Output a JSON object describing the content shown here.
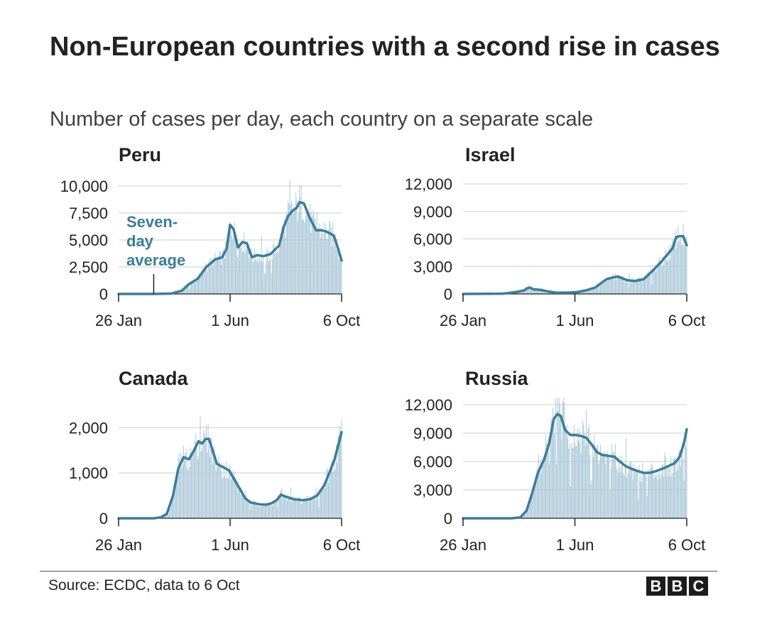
{
  "title": "Non-European countries with a second rise in cases",
  "subtitle": "Number of cases per day, each country on a separate scale",
  "source": "Source: ECDC, data to 6 Oct",
  "logo": [
    "B",
    "B",
    "C"
  ],
  "colors": {
    "line": "#3b7d99",
    "bars": "#a9c8d8",
    "grid": "#cccccc",
    "axis": "#222222",
    "text": "#222222"
  },
  "chart_data": [
    {
      "type": "bar",
      "title": "Peru",
      "x_domain_days": [
        0,
        254
      ],
      "x_ticks": [
        {
          "day": 0,
          "label": "26 Jan"
        },
        {
          "day": 127,
          "label": "1 Jun"
        },
        {
          "day": 254,
          "label": "6 Oct"
        }
      ],
      "y_ticks": [
        "0",
        "2,500",
        "5,000",
        "7,500",
        "10,000"
      ],
      "ylim": [
        0,
        10000
      ],
      "annotation": {
        "lines": [
          "Seven-",
          "day",
          "average"
        ],
        "day": 40
      },
      "series": [
        {
          "name": "Daily cases",
          "style": "bars"
        },
        {
          "name": "Seven-day average",
          "style": "line",
          "points": [
            [
              0,
              0
            ],
            [
              40,
              0
            ],
            [
              60,
              30
            ],
            [
              72,
              300
            ],
            [
              80,
              900
            ],
            [
              90,
              1400
            ],
            [
              100,
              2500
            ],
            [
              110,
              3200
            ],
            [
              118,
              3400
            ],
            [
              123,
              4200
            ],
            [
              127,
              6400
            ],
            [
              131,
              6000
            ],
            [
              136,
              4300
            ],
            [
              141,
              4800
            ],
            [
              146,
              4700
            ],
            [
              150,
              3800
            ],
            [
              152,
              3400
            ],
            [
              158,
              3600
            ],
            [
              165,
              3500
            ],
            [
              173,
              3700
            ],
            [
              183,
              4500
            ],
            [
              188,
              6200
            ],
            [
              193,
              7200
            ],
            [
              198,
              7700
            ],
            [
              203,
              8000
            ],
            [
              206,
              8500
            ],
            [
              211,
              8400
            ],
            [
              218,
              7000
            ],
            [
              225,
              5900
            ],
            [
              231,
              5900
            ],
            [
              236,
              5800
            ],
            [
              241,
              5600
            ],
            [
              245,
              5400
            ],
            [
              250,
              4200
            ],
            [
              254,
              3100
            ]
          ]
        }
      ]
    },
    {
      "type": "bar",
      "title": "Israel",
      "x_domain_days": [
        0,
        254
      ],
      "x_ticks": [
        {
          "day": 0,
          "label": "26 Jan"
        },
        {
          "day": 127,
          "label": "1 Jun"
        },
        {
          "day": 254,
          "label": "6 Oct"
        }
      ],
      "y_ticks": [
        "0",
        "3,000",
        "6,000",
        "9,000",
        "12,000"
      ],
      "ylim": [
        0,
        12000
      ],
      "series": [
        {
          "name": "Daily cases",
          "style": "bars"
        },
        {
          "name": "Seven-day average",
          "style": "line",
          "points": [
            [
              0,
              0
            ],
            [
              45,
              30
            ],
            [
              60,
              200
            ],
            [
              70,
              400
            ],
            [
              72,
              600
            ],
            [
              76,
              700
            ],
            [
              80,
              500
            ],
            [
              88,
              450
            ],
            [
              95,
              300
            ],
            [
              105,
              150
            ],
            [
              120,
              150
            ],
            [
              130,
              200
            ],
            [
              140,
              400
            ],
            [
              150,
              700
            ],
            [
              157,
              1200
            ],
            [
              163,
              1600
            ],
            [
              170,
              1800
            ],
            [
              176,
              1900
            ],
            [
              181,
              1700
            ],
            [
              186,
              1500
            ],
            [
              195,
              1400
            ],
            [
              205,
              1600
            ],
            [
              215,
              2500
            ],
            [
              225,
              3500
            ],
            [
              232,
              4300
            ],
            [
              238,
              5000
            ],
            [
              242,
              6200
            ],
            [
              246,
              6300
            ],
            [
              250,
              6300
            ],
            [
              254,
              5300
            ]
          ]
        }
      ]
    },
    {
      "type": "bar",
      "title": "Canada",
      "x_domain_days": [
        0,
        254
      ],
      "x_ticks": [
        {
          "day": 0,
          "label": "26 Jan"
        },
        {
          "day": 127,
          "label": "1 Jun"
        },
        {
          "day": 254,
          "label": "6 Oct"
        }
      ],
      "y_ticks": [
        "0",
        "1,000",
        "2,000"
      ],
      "ylim": [
        0,
        2600
      ],
      "series": [
        {
          "name": "Daily cases",
          "style": "bars"
        },
        {
          "name": "Seven-day average",
          "style": "line",
          "points": [
            [
              0,
              0
            ],
            [
              40,
              0
            ],
            [
              48,
              20
            ],
            [
              55,
              100
            ],
            [
              62,
              500
            ],
            [
              68,
              1100
            ],
            [
              74,
              1350
            ],
            [
              80,
              1300
            ],
            [
              86,
              1500
            ],
            [
              91,
              1700
            ],
            [
              95,
              1650
            ],
            [
              99,
              1750
            ],
            [
              103,
              1750
            ],
            [
              107,
              1500
            ],
            [
              112,
              1200
            ],
            [
              120,
              1120
            ],
            [
              126,
              1050
            ],
            [
              132,
              850
            ],
            [
              138,
              650
            ],
            [
              144,
              450
            ],
            [
              150,
              350
            ],
            [
              160,
              310
            ],
            [
              168,
              300
            ],
            [
              174,
              330
            ],
            [
              180,
              400
            ],
            [
              185,
              520
            ],
            [
              190,
              480
            ],
            [
              200,
              420
            ],
            [
              210,
              400
            ],
            [
              218,
              420
            ],
            [
              226,
              500
            ],
            [
              234,
              720
            ],
            [
              240,
              1000
            ],
            [
              246,
              1300
            ],
            [
              250,
              1600
            ],
            [
              254,
              1900
            ]
          ]
        }
      ]
    },
    {
      "type": "bar",
      "title": "Russia",
      "x_domain_days": [
        0,
        254
      ],
      "x_ticks": [
        {
          "day": 0,
          "label": "26 Jan"
        },
        {
          "day": 127,
          "label": "1 Jun"
        },
        {
          "day": 254,
          "label": "6 Oct"
        }
      ],
      "y_ticks": [
        "0",
        "3,000",
        "6,000",
        "9,000",
        "12,000"
      ],
      "ylim": [
        0,
        12000
      ],
      "series": [
        {
          "name": "Daily cases",
          "style": "bars"
        },
        {
          "name": "Seven-day average",
          "style": "line",
          "points": [
            [
              0,
              0
            ],
            [
              55,
              0
            ],
            [
              65,
              100
            ],
            [
              72,
              800
            ],
            [
              78,
              2500
            ],
            [
              85,
              4800
            ],
            [
              92,
              6200
            ],
            [
              98,
              8000
            ],
            [
              103,
              10500
            ],
            [
              107,
              11000
            ],
            [
              111,
              10800
            ],
            [
              116,
              9300
            ],
            [
              122,
              8800
            ],
            [
              128,
              8800
            ],
            [
              134,
              8700
            ],
            [
              140,
              8500
            ],
            [
              146,
              7800
            ],
            [
              152,
              7000
            ],
            [
              158,
              6700
            ],
            [
              165,
              6600
            ],
            [
              172,
              6500
            ],
            [
              178,
              6000
            ],
            [
              185,
              5500
            ],
            [
              192,
              5200
            ],
            [
              198,
              5000
            ],
            [
              205,
              4800
            ],
            [
              212,
              4800
            ],
            [
              220,
              5000
            ],
            [
              228,
              5300
            ],
            [
              235,
              5600
            ],
            [
              240,
              5800
            ],
            [
              246,
              6500
            ],
            [
              251,
              8000
            ],
            [
              254,
              9400
            ]
          ]
        }
      ]
    }
  ]
}
